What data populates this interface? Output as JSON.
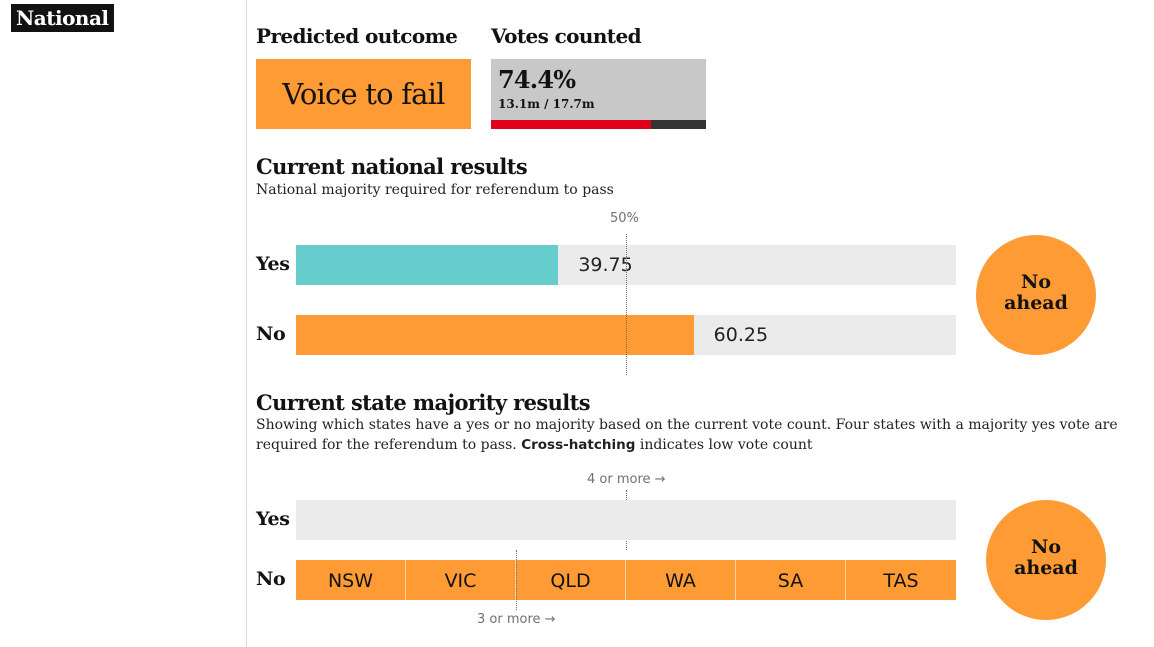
{
  "section": "National",
  "predicted": {
    "heading": "Predicted outcome",
    "value": "Voice to fail"
  },
  "counted": {
    "heading": "Votes counted",
    "percent": "74.4%",
    "detail": "13.1m / 17.7m",
    "fraction": 0.744
  },
  "national": {
    "title": "Current national results",
    "subtitle": "National majority required for referendum to pass",
    "threshold_label": "50%",
    "circle_line1": "No",
    "circle_line2": "ahead"
  },
  "states": {
    "title": "Current state majority results",
    "desc_main": "Showing which states have a yes or no majority based on the current vote count. Four states with a majority yes vote are required for the referendum to pass.",
    "desc_bold": "Cross-hatching",
    "desc_end": "indicates low vote count",
    "label_4": "4 or more →",
    "label_3": "3 or more →",
    "yes_label": "Yes",
    "no_label": "No",
    "circle_line1": "No",
    "circle_line2": "ahead"
  },
  "chart_data": [
    {
      "type": "bar",
      "categories": [
        "Yes",
        "No"
      ],
      "values": [
        39.75,
        60.25
      ],
      "value_labels": [
        "39.75",
        "60.25"
      ],
      "xlim": [
        0,
        100
      ],
      "threshold": 50,
      "colors": [
        "#66cccc",
        "#ff9b34"
      ]
    },
    {
      "type": "bar",
      "categories": [
        "Yes",
        "No"
      ],
      "values": [
        0,
        6
      ],
      "xlim": [
        0,
        6
      ],
      "states_no": [
        "NSW",
        "VIC",
        "QLD",
        "WA",
        "SA",
        "TAS"
      ],
      "states_yes": [],
      "colors": {
        "yes": "#66cccc",
        "no": "#ff9b34"
      }
    }
  ]
}
